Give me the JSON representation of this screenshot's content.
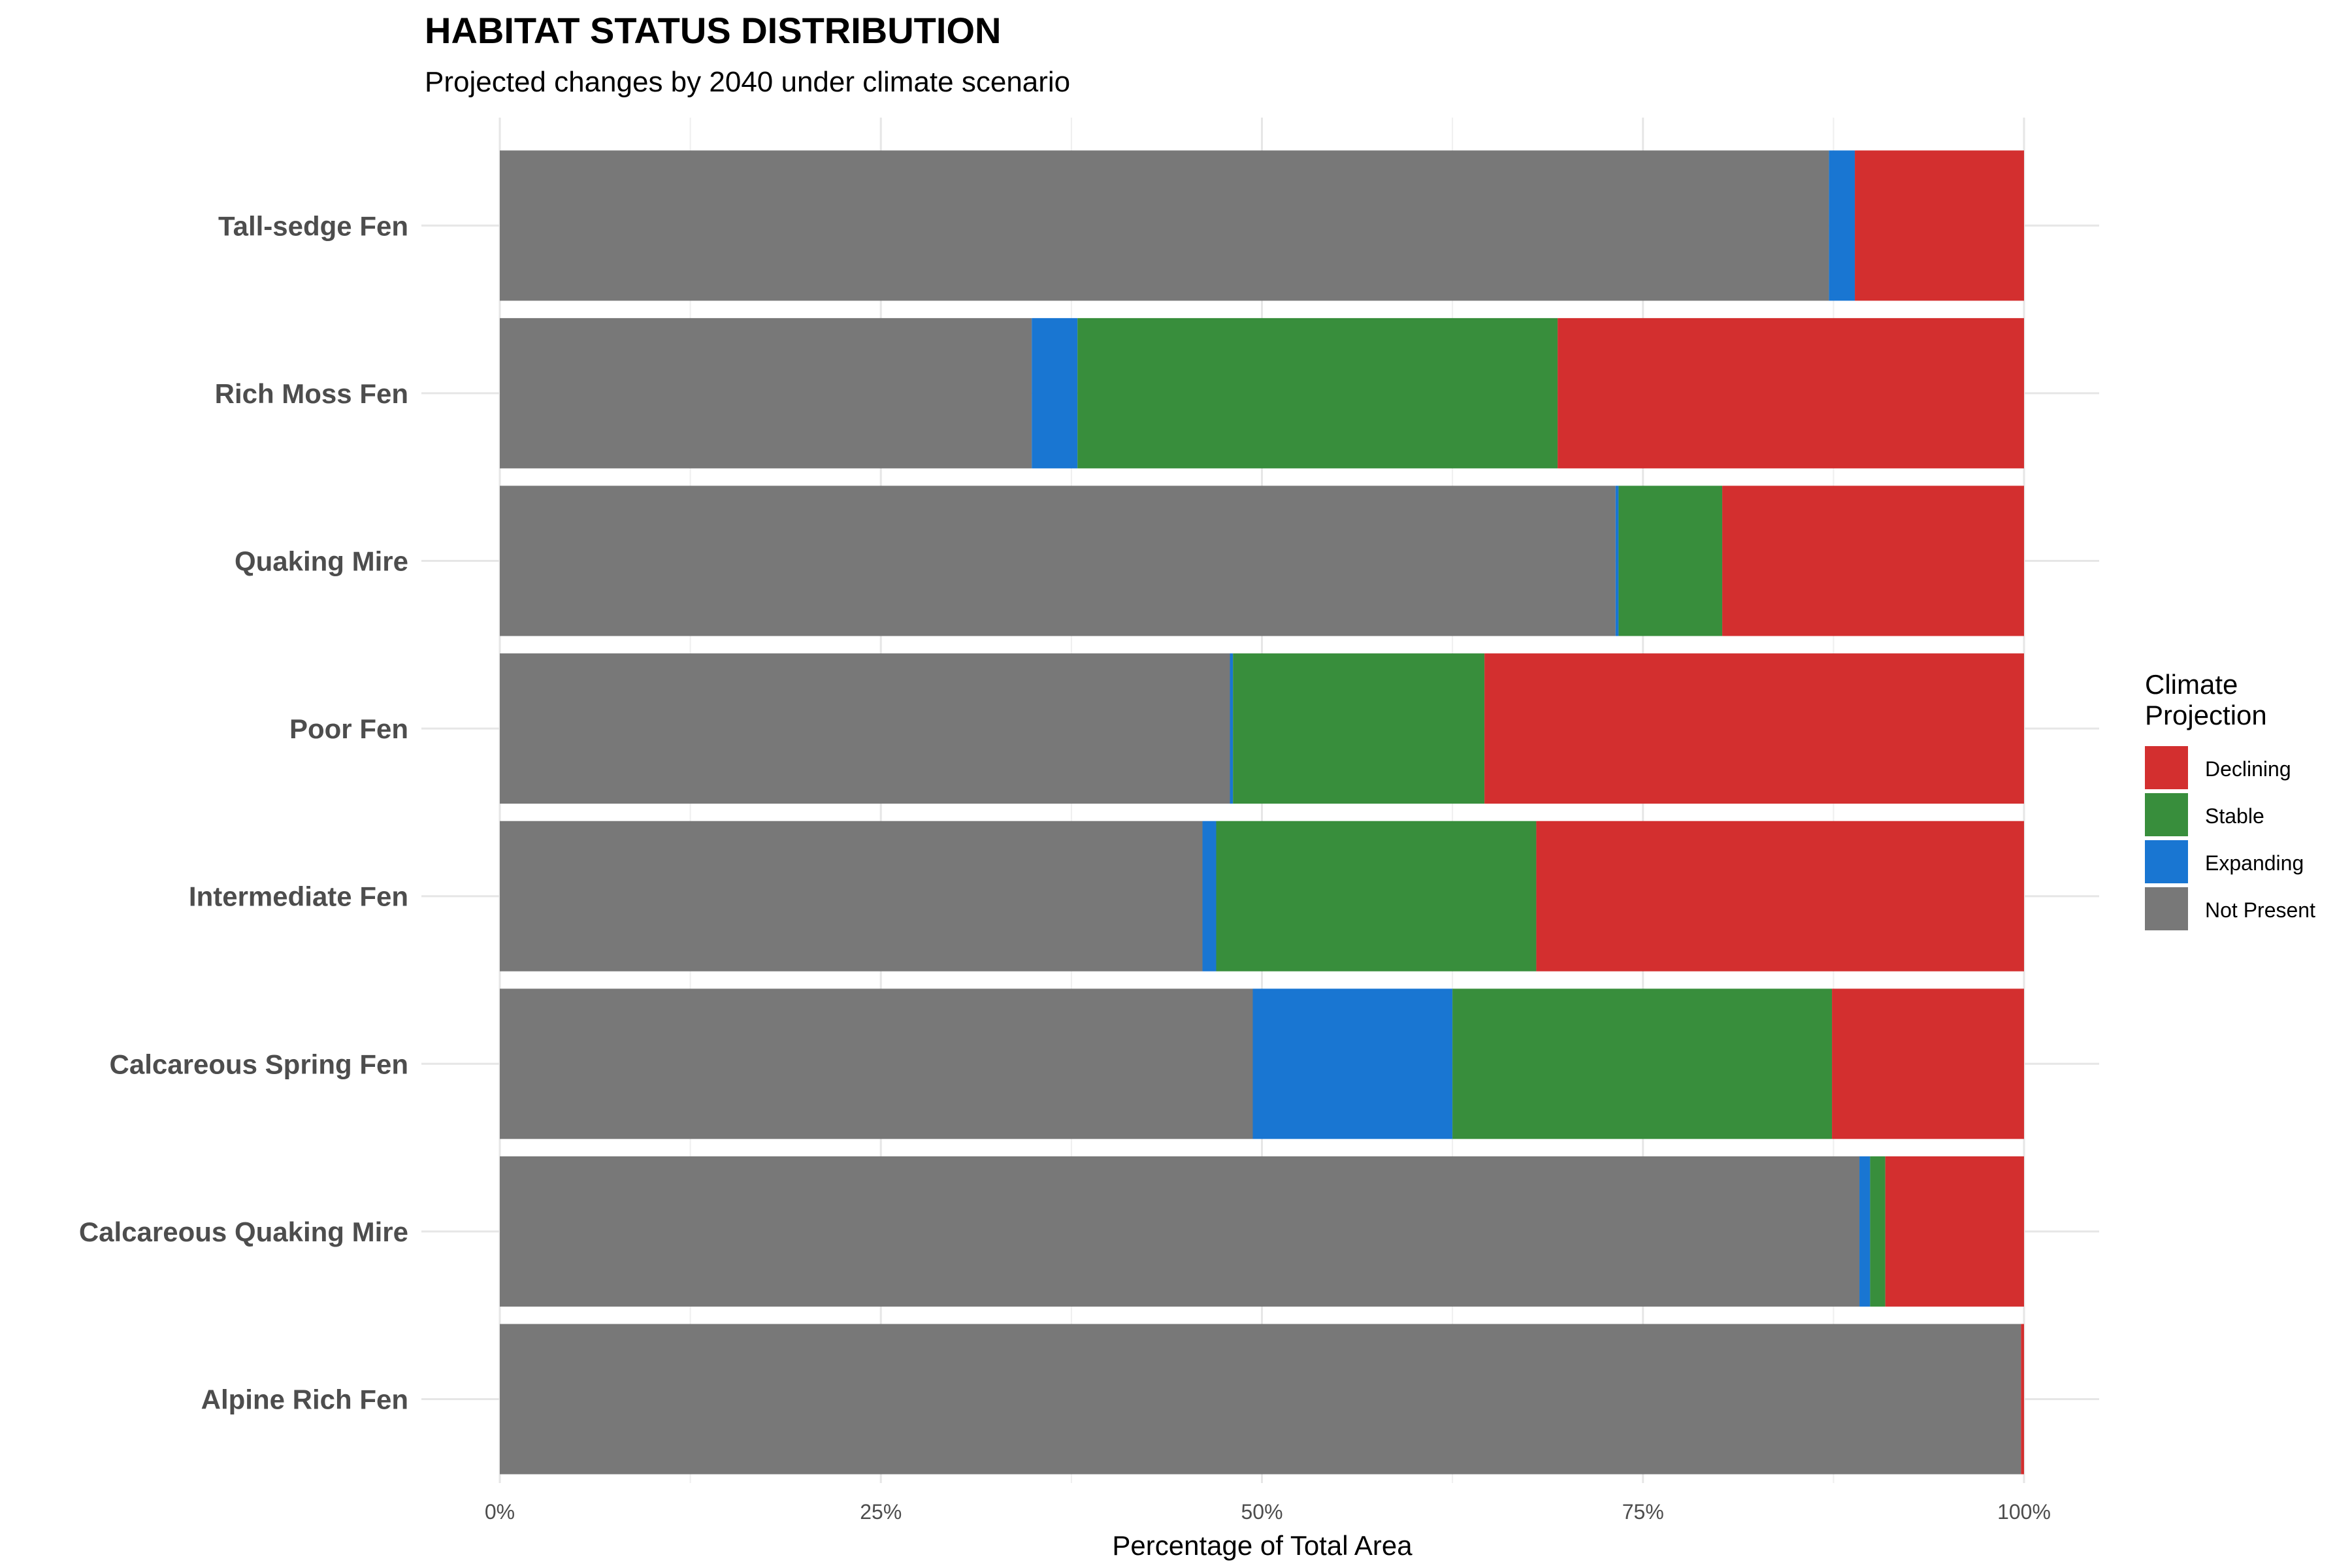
{
  "chart_data": {
    "type": "bar",
    "orientation": "horizontal",
    "stacked": true,
    "title": "HABITAT STATUS DISTRIBUTION",
    "subtitle": "Projected changes by 2040 under climate scenario",
    "xlabel": "Percentage of Total Area",
    "ylabel": "",
    "xlim": [
      0,
      100
    ],
    "x_ticks": [
      "0%",
      "25%",
      "50%",
      "75%",
      "100%"
    ],
    "x_tick_values": [
      0,
      25,
      50,
      75,
      100
    ],
    "grid": true,
    "legend_position": "right",
    "legend_title": "Climate Projection",
    "categories": [
      "Tall-sedge Fen",
      "Rich Moss Fen",
      "Quaking Mire",
      "Poor Fen",
      "Intermediate Fen",
      "Calcareous Spring Fen",
      "Calcareous Quaking Mire",
      "Alpine Rich Fen"
    ],
    "series": [
      {
        "name": "Not Present",
        "color": "#787878",
        "values": [
          87.2,
          34.9,
          73.2,
          47.9,
          46.1,
          49.4,
          89.2,
          99.8
        ]
      },
      {
        "name": "Expanding",
        "color": "#1976d2",
        "values": [
          1.7,
          3.0,
          0.2,
          0.2,
          0.9,
          13.1,
          0.7,
          0.0
        ]
      },
      {
        "name": "Stable",
        "color": "#388e3c",
        "values": [
          0.0,
          31.5,
          6.8,
          16.5,
          21.0,
          24.9,
          1.0,
          0.0
        ]
      },
      {
        "name": "Declining",
        "color": "#d32f2f",
        "values": [
          11.1,
          30.6,
          19.8,
          35.4,
          32.0,
          12.6,
          9.1,
          0.2
        ]
      }
    ],
    "legend_order": [
      "Declining",
      "Stable",
      "Expanding",
      "Not Present"
    ]
  }
}
